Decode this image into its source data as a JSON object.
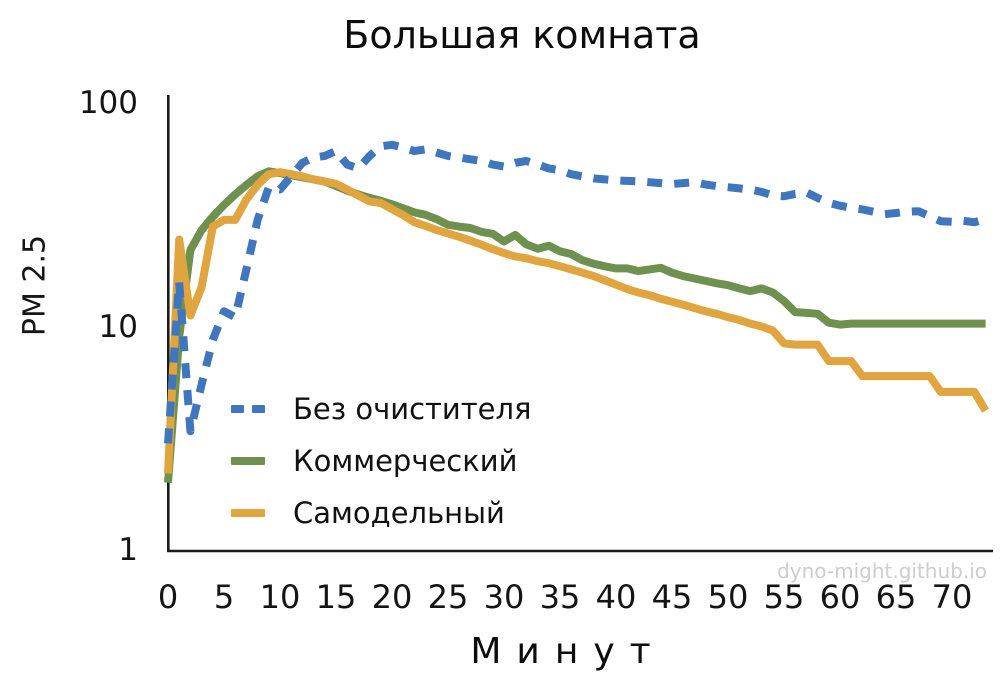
{
  "chart_data": {
    "type": "line",
    "title": "Большая комната",
    "xlabel": "Минут",
    "ylabel": "PM 2.5",
    "watermark": "dyno-might.github.io",
    "y_scale": "log",
    "ylim": [
      1,
      100
    ],
    "xlim": [
      0,
      74
    ],
    "grid": false,
    "legend_position": "inside-lower-left",
    "x_ticks": [
      0,
      5,
      10,
      15,
      20,
      25,
      30,
      35,
      40,
      45,
      50,
      55,
      60,
      65,
      70
    ],
    "y_ticks": [
      100,
      10,
      1
    ],
    "x": [
      0,
      1,
      2,
      3,
      4,
      5,
      6,
      7,
      8,
      9,
      10,
      11,
      12,
      13,
      14,
      15,
      16,
      17,
      18,
      19,
      20,
      21,
      22,
      23,
      24,
      25,
      26,
      27,
      28,
      29,
      30,
      31,
      32,
      33,
      34,
      35,
      36,
      37,
      38,
      39,
      40,
      41,
      42,
      43,
      44,
      45,
      46,
      47,
      48,
      49,
      50,
      51,
      52,
      53,
      54,
      55,
      56,
      57,
      58,
      59,
      60,
      61,
      62,
      63,
      64,
      65,
      66,
      67,
      68,
      69,
      70,
      71,
      72,
      73
    ],
    "series": [
      {
        "name": "Без очистителя",
        "color": "#3f76bd",
        "style": "dashed",
        "values": [
          3,
          15.8,
          3.4,
          5.5,
          8.7,
          11.7,
          11,
          18,
          30,
          42,
          41,
          47,
          54,
          57,
          58,
          61,
          53,
          51,
          58,
          64,
          65,
          63,
          61,
          62,
          60,
          58,
          57,
          56,
          55,
          53,
          52,
          54,
          55,
          53,
          51,
          50,
          48,
          47,
          46,
          45.5,
          45,
          44.8,
          44.6,
          44.2,
          43.8,
          43.4,
          43.8,
          44.2,
          43.2,
          42.5,
          42,
          41.5,
          41,
          40,
          38.6,
          38.3,
          39.2,
          39.8,
          37.6,
          35.8,
          34.7,
          34,
          33.4,
          32.6,
          31.8,
          32.2,
          32.6,
          32.8,
          31.2,
          29.6,
          29.4,
          29.7,
          29.3,
          30.2
        ]
      },
      {
        "name": "Коммерческий",
        "color": "#6f9150",
        "style": "solid",
        "values": [
          2,
          9,
          22,
          27,
          31,
          35,
          39,
          43,
          47,
          49.5,
          48.5,
          47.5,
          46.5,
          45.5,
          44.5,
          42.5,
          40.5,
          39,
          37.6,
          36.5,
          35.2,
          33.8,
          32.4,
          31.6,
          30.2,
          28.5,
          28,
          27.6,
          26.5,
          26,
          24,
          25.7,
          23.3,
          22.3,
          23,
          21.7,
          21.1,
          19.8,
          19.1,
          18.6,
          18.2,
          18.2,
          17.7,
          18,
          18.3,
          17.4,
          16.8,
          16.4,
          16,
          15.6,
          15.3,
          14.8,
          14.4,
          14.8,
          14.2,
          13,
          11.6,
          11.5,
          11.4,
          10.4,
          10.2,
          10.3,
          10.3,
          10.3,
          10.3,
          10.3,
          10.3,
          10.3,
          10.3,
          10.3,
          10.3,
          10.3,
          10.3,
          10.3
        ]
      },
      {
        "name": "Самодельный",
        "color": "#e0a53f",
        "style": "solid",
        "values": [
          2.2,
          24.5,
          11.2,
          15,
          28,
          30,
          30,
          37,
          43,
          48,
          49,
          48,
          47,
          45.5,
          44.5,
          43.5,
          41,
          38.5,
          36.3,
          35.7,
          33.5,
          31.5,
          29.3,
          28.2,
          27,
          26.1,
          25.2,
          24.2,
          23.2,
          22.2,
          21.3,
          20.6,
          20.2,
          19.6,
          19.2,
          18.6,
          18,
          17.4,
          16.8,
          16.1,
          15.4,
          14.7,
          14.2,
          13.8,
          13.3,
          12.9,
          12.5,
          12.1,
          11.7,
          11.4,
          11,
          10.7,
          10.3,
          10,
          9.6,
          8.4,
          8.3,
          8.3,
          8.3,
          7,
          7,
          7,
          6,
          6,
          6,
          6,
          6,
          6,
          6,
          5.1,
          5.1,
          5.1,
          5.1,
          4.2
        ]
      }
    ]
  }
}
